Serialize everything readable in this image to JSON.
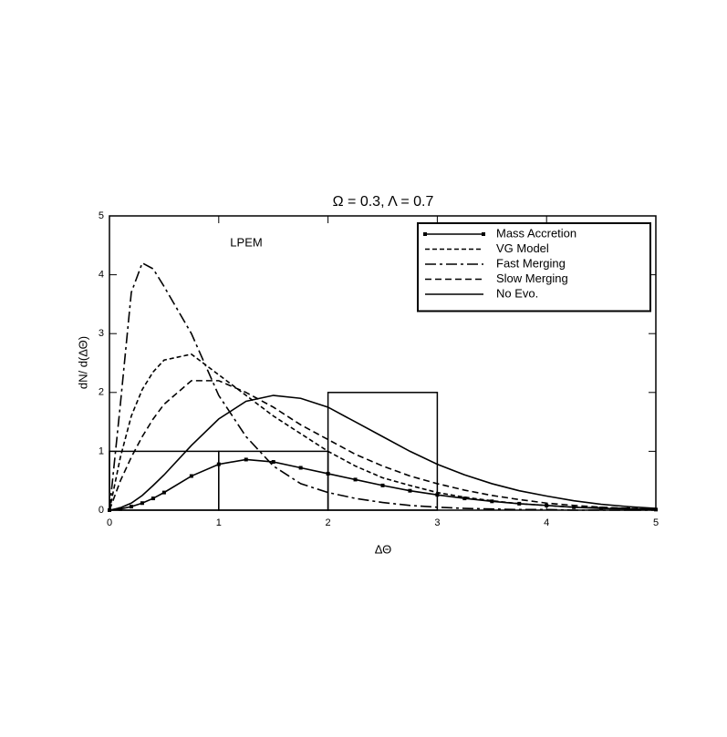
{
  "chart_data": {
    "type": "line",
    "title": "Ω = 0.3, Λ = 0.7",
    "annotation": "LPEM",
    "x_label": "ΔΘ",
    "y_label": "dN/ d(ΔΘ)",
    "x": [
      0,
      0.1,
      0.2,
      0.3,
      0.4,
      0.5,
      0.75,
      1,
      1.25,
      1.5,
      1.75,
      2,
      2.25,
      2.5,
      2.75,
      3,
      3.25,
      3.5,
      3.75,
      4,
      4.25,
      4.5,
      4.75,
      5
    ],
    "series": [
      {
        "name": "Mass Accretion",
        "color": "#000000",
        "dash": "none",
        "marker": "square",
        "values": [
          0,
          0.02,
          0.06,
          0.12,
          0.2,
          0.3,
          0.58,
          0.78,
          0.86,
          0.82,
          0.72,
          0.62,
          0.52,
          0.42,
          0.33,
          0.26,
          0.2,
          0.15,
          0.11,
          0.08,
          0.05,
          0.03,
          0.02,
          0.01
        ]
      },
      {
        "name": "VG Model",
        "color": "#000000",
        "dash": "5,3",
        "values": [
          0,
          0.9,
          1.6,
          2.05,
          2.35,
          2.55,
          2.65,
          2.3,
          1.95,
          1.6,
          1.3,
          1.0,
          0.75,
          0.55,
          0.42,
          0.3,
          0.22,
          0.16,
          0.11,
          0.08,
          0.05,
          0.04,
          0.03,
          0.01
        ]
      },
      {
        "name": "Fast Merging",
        "color": "#000000",
        "dash": "12,4,3,4",
        "values": [
          0,
          1.8,
          3.7,
          4.2,
          4.1,
          3.8,
          3.0,
          1.95,
          1.25,
          0.75,
          0.45,
          0.3,
          0.2,
          0.13,
          0.08,
          0.05,
          0.03,
          0.02,
          0.01,
          0.01,
          0,
          0,
          0,
          0
        ]
      },
      {
        "name": "Slow Merging",
        "color": "#000000",
        "dash": "7,4",
        "values": [
          0,
          0.5,
          0.9,
          1.25,
          1.55,
          1.8,
          2.2,
          2.2,
          2.0,
          1.75,
          1.45,
          1.2,
          0.95,
          0.75,
          0.58,
          0.45,
          0.34,
          0.25,
          0.18,
          0.12,
          0.08,
          0.05,
          0.03,
          0.02
        ]
      },
      {
        "name": "No Evo.",
        "color": "#000000",
        "dash": "none",
        "values": [
          0,
          0.04,
          0.12,
          0.25,
          0.42,
          0.6,
          1.1,
          1.55,
          1.85,
          1.95,
          1.9,
          1.75,
          1.5,
          1.25,
          1.0,
          0.78,
          0.6,
          0.45,
          0.33,
          0.24,
          0.16,
          0.1,
          0.06,
          0.03
        ]
      }
    ],
    "histogram": {
      "bins": [
        0,
        1,
        2,
        3
      ],
      "counts": [
        1,
        1,
        2
      ],
      "color": "#000000"
    },
    "xlim": [
      0,
      5
    ],
    "xticks": [
      0,
      1,
      2,
      3,
      4,
      5
    ],
    "ylim": [
      0,
      5
    ],
    "yticks": [
      0,
      1,
      2,
      3,
      4,
      5
    ],
    "grid": false,
    "legend": "upper right"
  }
}
